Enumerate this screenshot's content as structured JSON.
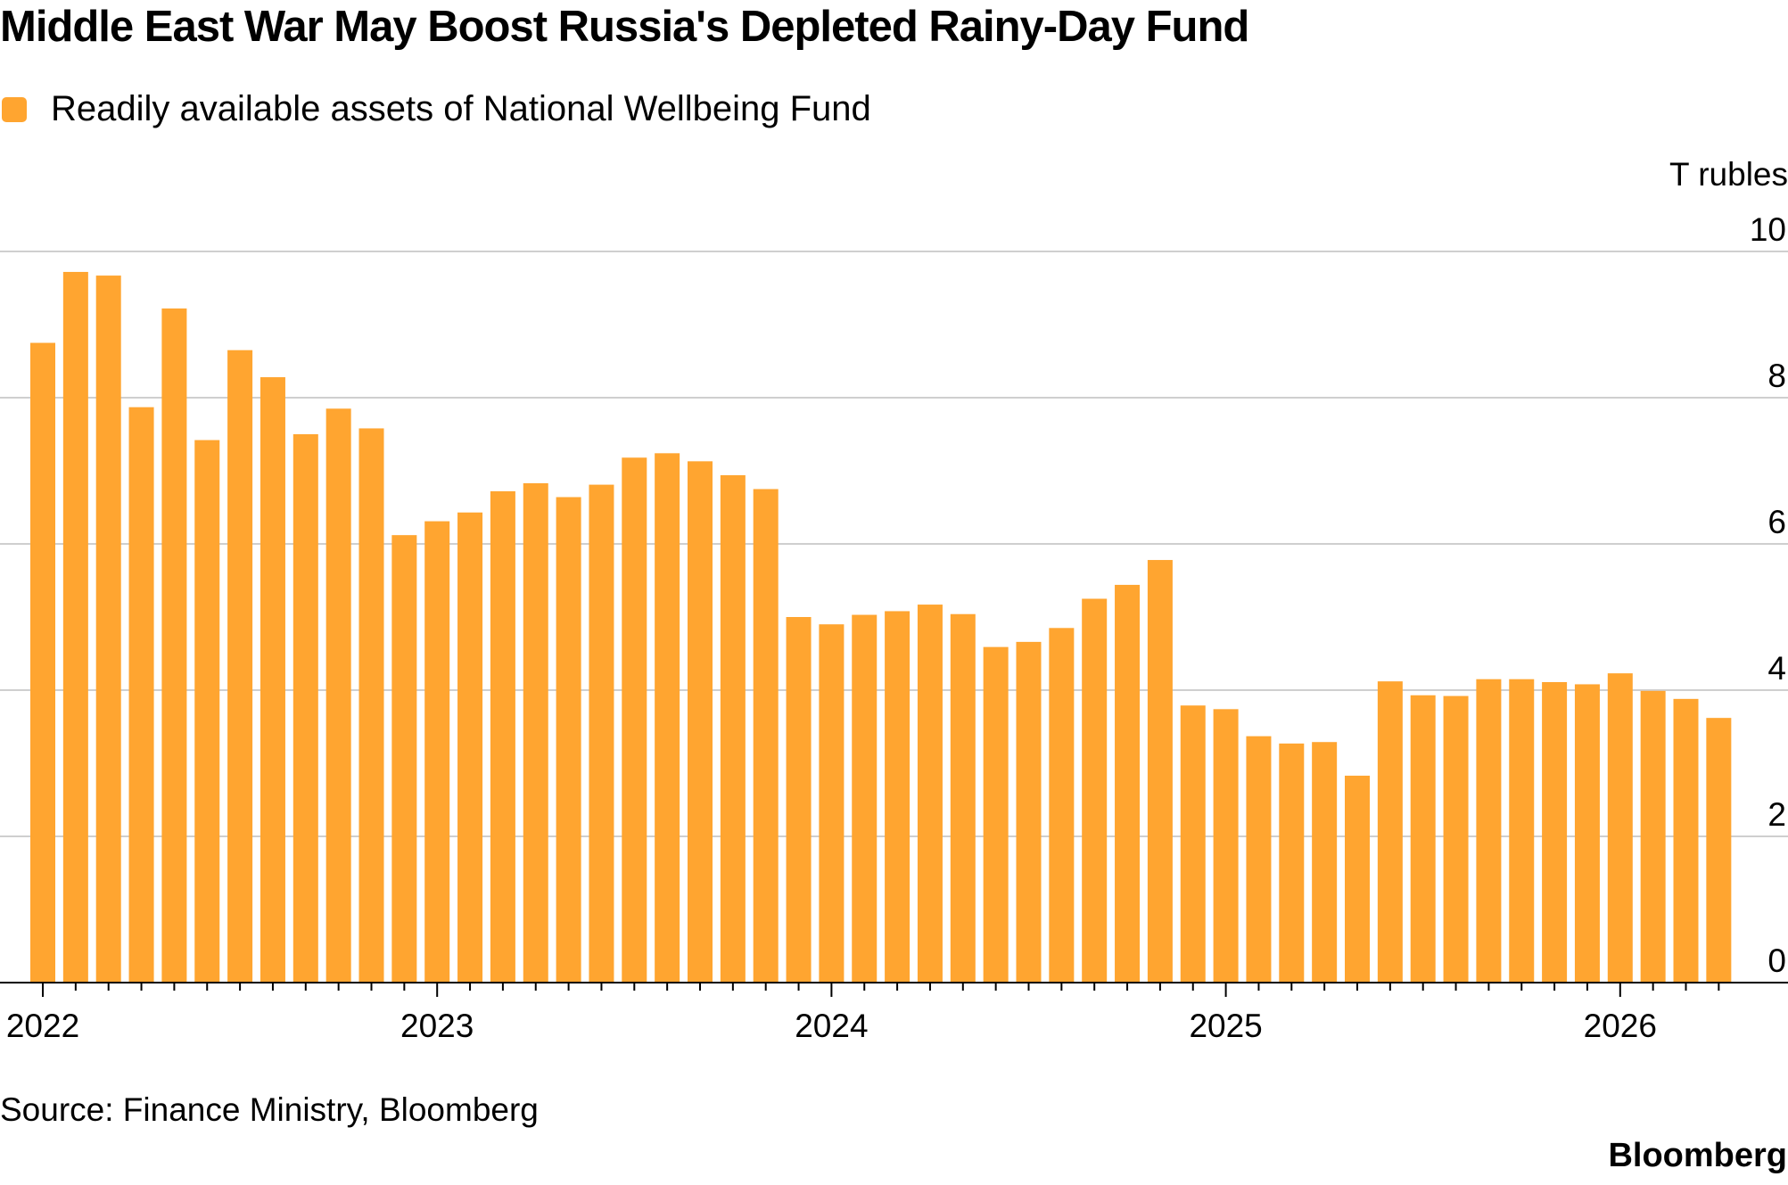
{
  "title": "Middle East War May Boost Russia's Depleted Rainy-Day Fund",
  "legend": {
    "label": "Readily available assets of National Wellbeing Fund",
    "color": "#ffa530"
  },
  "unit_label": "T rubles",
  "source": "Source: Finance Ministry, Bloomberg",
  "brand": "Bloomberg",
  "chart_data": {
    "type": "bar",
    "series": [
      {
        "name": "Readily available assets of National Wellbeing Fund",
        "color": "#ffa530"
      }
    ],
    "start_month": "2022-01",
    "values": [
      8.75,
      9.72,
      9.67,
      7.87,
      9.22,
      7.42,
      8.65,
      8.28,
      7.5,
      7.85,
      7.58,
      6.12,
      6.31,
      6.43,
      6.72,
      6.83,
      6.64,
      6.81,
      7.18,
      7.24,
      7.13,
      6.94,
      6.75,
      5.0,
      4.9,
      5.03,
      5.08,
      5.17,
      5.04,
      4.59,
      4.66,
      4.85,
      5.25,
      5.44,
      5.78,
      3.79,
      3.74,
      3.37,
      3.27,
      3.29,
      2.83,
      4.12,
      3.93,
      3.92,
      4.15,
      4.15,
      4.11,
      4.08,
      4.23,
      3.99,
      3.88,
      3.62
    ],
    "x_tick_labels": [
      "2022",
      "2023",
      "2024",
      "2025",
      "2026"
    ],
    "y_ticks": [
      0,
      2,
      4,
      6,
      8,
      10
    ],
    "ylim": [
      0,
      10
    ],
    "ylabel": "T rubles",
    "grid": true,
    "legend_position": "top-left"
  }
}
